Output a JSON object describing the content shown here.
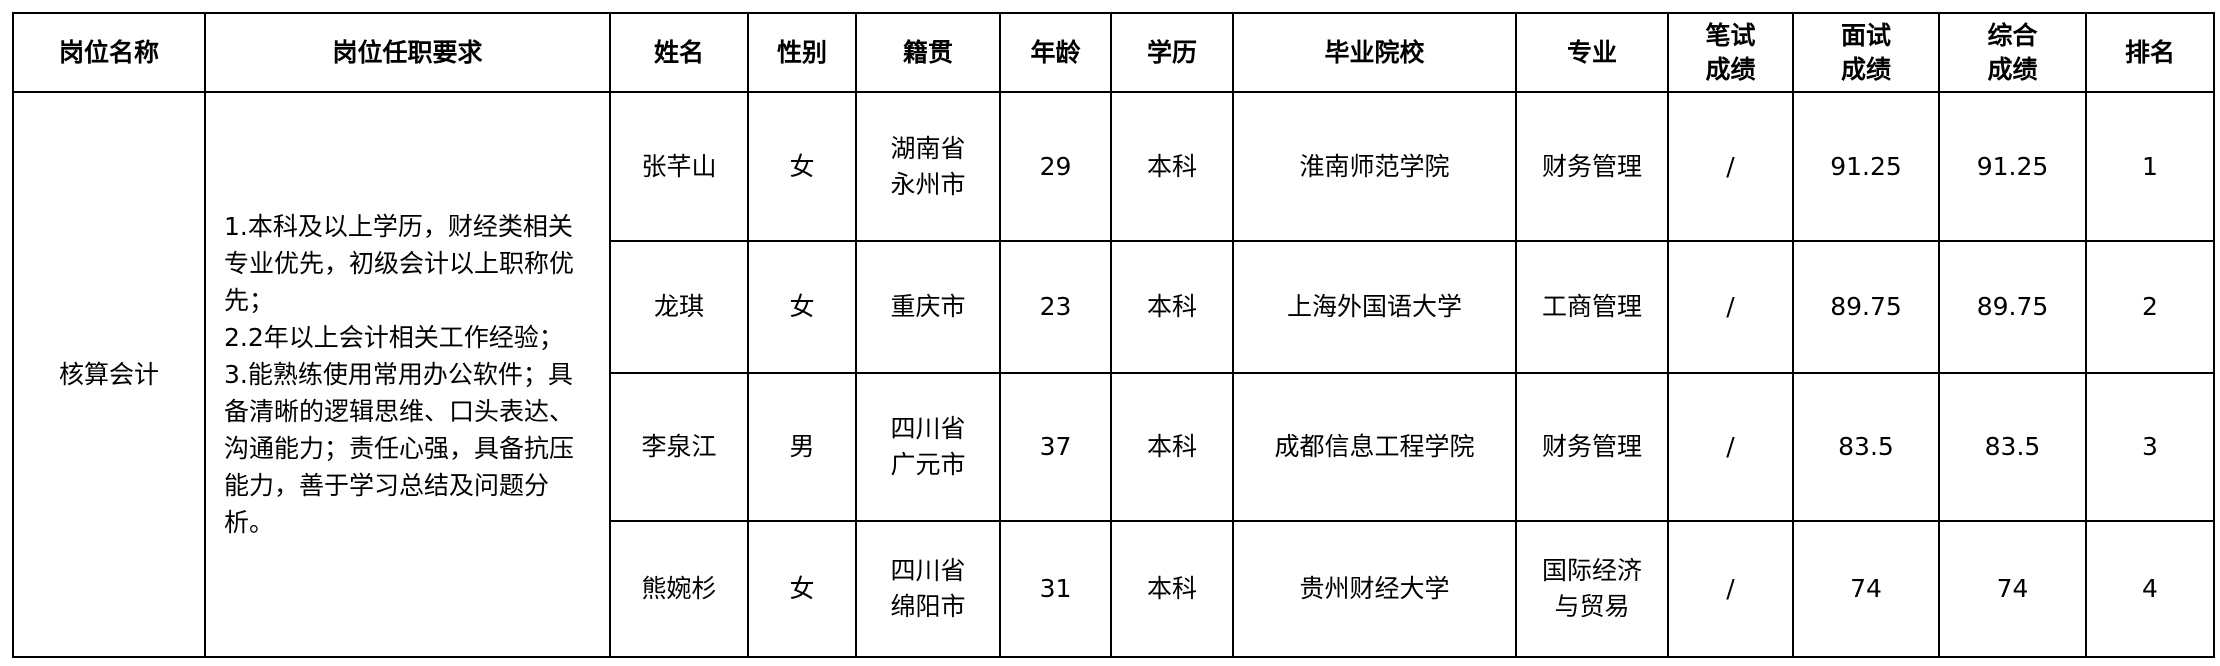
{
  "headers": [
    "岗位名称",
    "岗位任职要求",
    "姓名",
    "性别",
    "籍贯",
    "年龄",
    "学历",
    "毕业院校",
    "专业",
    "笔试成绩",
    "面试成绩",
    "综合成绩",
    "排名"
  ],
  "headers_display": [
    "岗位名称",
    "岗位任职要求",
    "姓名",
    "性别",
    "籍贯",
    "年龄",
    "学历",
    "毕业院校",
    "专业",
    [
      "笔试",
      "成绩"
    ],
    [
      "面试",
      "成绩"
    ],
    [
      "综合",
      "成绩"
    ],
    "排名"
  ],
  "position": "核算会计",
  "requirements": [
    "1.本科及以上学历，财经类相关专业优先，初级会计以上职称优先；",
    "2.2年以上会计相关工作经验；",
    "3.能熟练使用常用办公软件；具备清晰的逻辑思维、口头表达、沟通能力；责任心强，具备抗压能力，善于学习总结及问题分析。"
  ],
  "rows": [
    {
      "name": "张芊山",
      "gender": "女",
      "origin": [
        "湖南省",
        "永州市"
      ],
      "age": "29",
      "education": "本科",
      "school": "淮南师范学院",
      "major": [
        "财务管理"
      ],
      "written": "/",
      "interview": "91.25",
      "total": "91.25",
      "rank": "1"
    },
    {
      "name": "龙琪",
      "gender": "女",
      "origin": [
        "重庆市"
      ],
      "age": "23",
      "education": "本科",
      "school": "上海外国语大学",
      "major": [
        "工商管理"
      ],
      "written": "/",
      "interview": "89.75",
      "total": "89.75",
      "rank": "2"
    },
    {
      "name": "李泉江",
      "gender": "男",
      "origin": [
        "四川省",
        "广元市"
      ],
      "age": "37",
      "education": "本科",
      "school": "成都信息工程学院",
      "major": [
        "财务管理"
      ],
      "written": "/",
      "interview": "83.5",
      "total": "83.5",
      "rank": "3"
    },
    {
      "name": "熊婉杉",
      "gender": "女",
      "origin": [
        "四川省",
        "绵阳市"
      ],
      "age": "31",
      "education": "本科",
      "school": "贵州财经大学",
      "major": [
        "国际经济",
        "与贸易"
      ],
      "written": "/",
      "interview": "74",
      "total": "74",
      "rank": "4"
    }
  ]
}
